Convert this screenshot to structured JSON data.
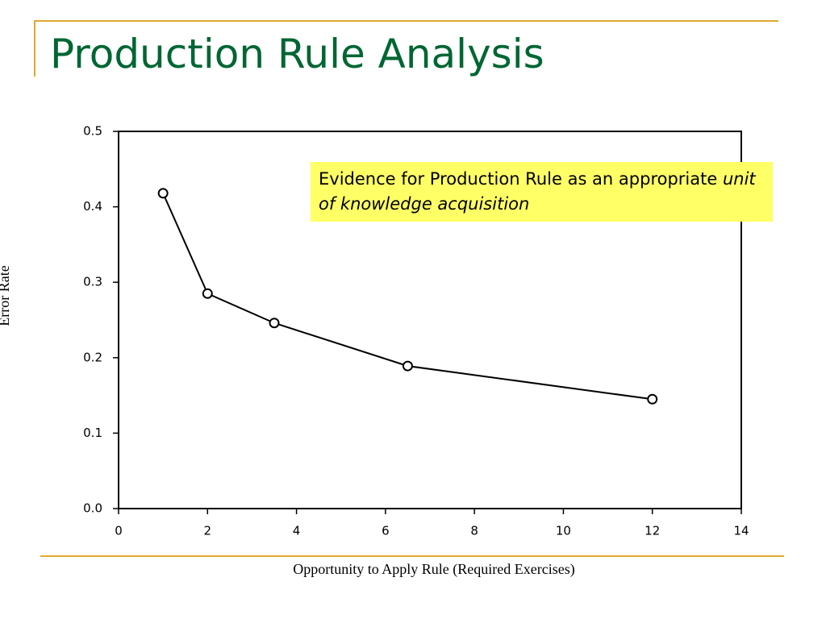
{
  "slide": {
    "title": "Production Rule Analysis"
  },
  "chart_data": {
    "type": "line",
    "xlabel": "Opportunity to Apply Rule (Required Exercises)",
    "ylabel": "Error Rate",
    "annotation": [
      "Evidence for Production Rule as an appropriate",
      "unit of knowledge acquisition"
    ],
    "x": [
      1,
      2,
      3.5,
      6.5,
      12
    ],
    "series": [
      {
        "color": "#000000",
        "values": [
          0.418,
          0.285,
          0.246,
          0.189,
          0.145
        ]
      }
    ],
    "xlim": [
      0,
      14
    ],
    "xticks": [
      0,
      2,
      4,
      6,
      8,
      10,
      12,
      14
    ],
    "ylim": [
      0,
      0.5
    ],
    "yticks": [
      {
        "value": 0,
        "label": "0.0"
      },
      0.1,
      0.2,
      0.3,
      0.4,
      0.5
    ],
    "grid": false
  }
}
